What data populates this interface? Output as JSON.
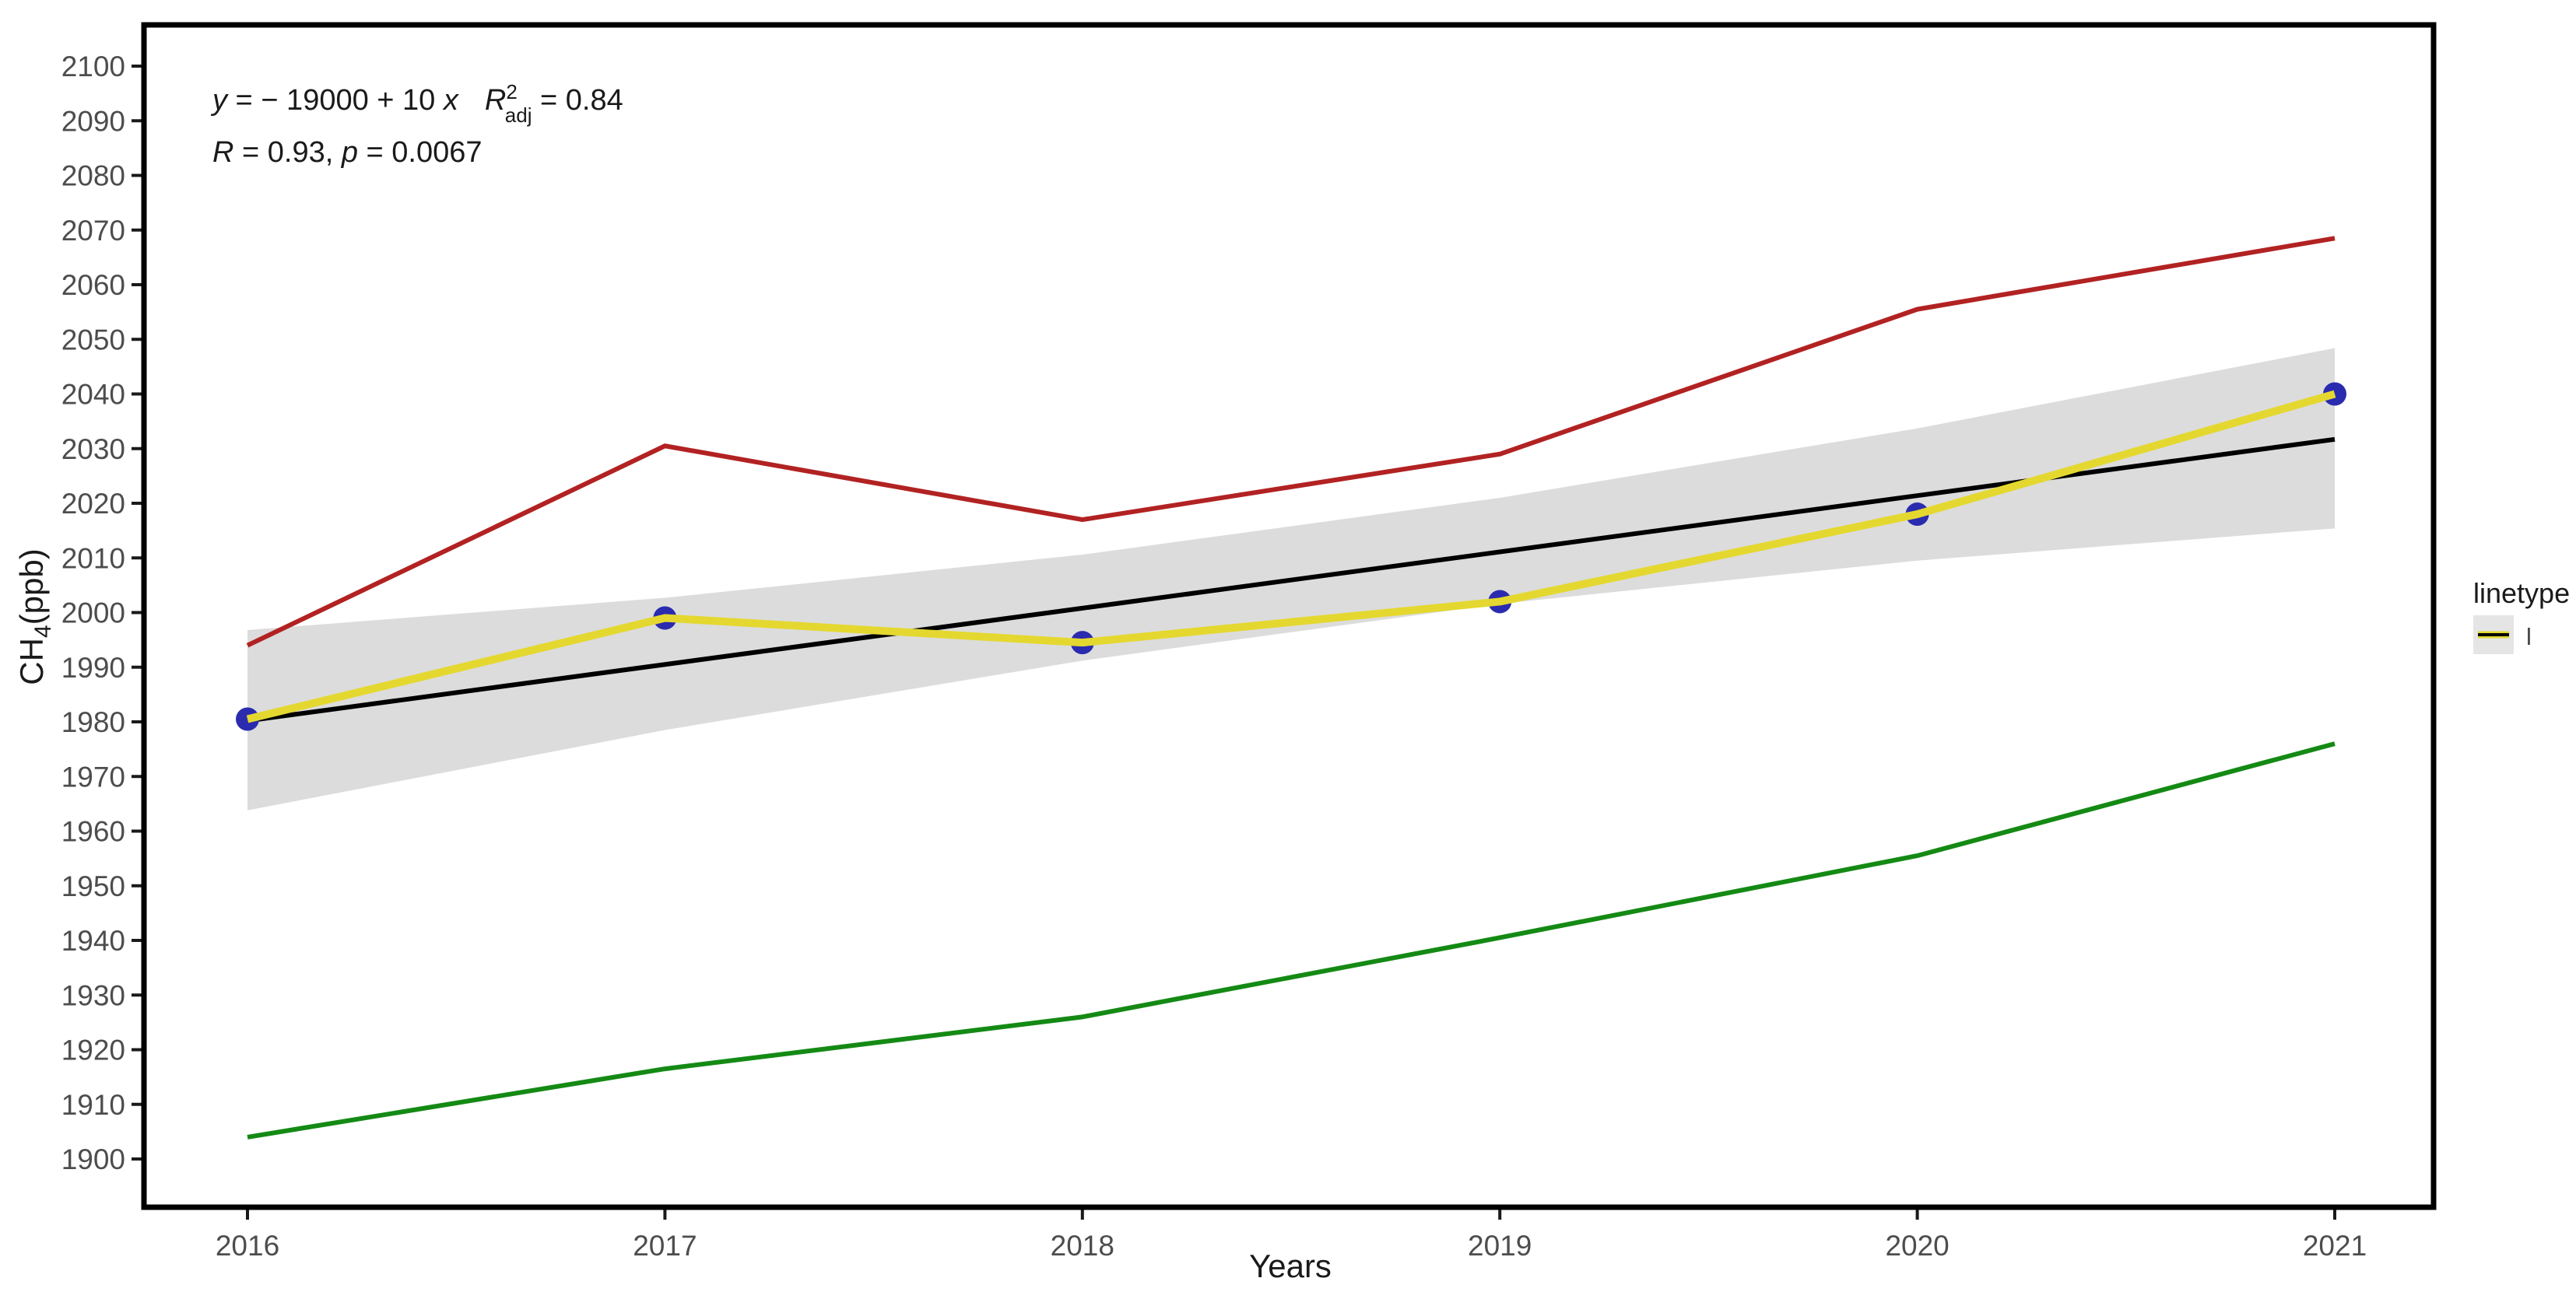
{
  "chart_data": {
    "type": "line",
    "title": "",
    "xlabel": "Years",
    "ylabel": "CH4(ppb)",
    "x": [
      2016,
      2017,
      2018,
      2019,
      2020,
      2021
    ],
    "xlim": [
      2015.75,
      2021.25
    ],
    "ylim": [
      1891,
      2108
    ],
    "yticks": [
      1900,
      1910,
      1920,
      1930,
      1940,
      1950,
      1960,
      1970,
      1980,
      1990,
      2000,
      2010,
      2020,
      2030,
      2040,
      2050,
      2060,
      2070,
      2080,
      2090,
      2100
    ],
    "grid": false,
    "panel_border_color": "#000000",
    "tick_color": "#1a1a1a",
    "series": [
      {
        "name": "upper-red-line",
        "color": "#B22222",
        "width": 6,
        "values": [
          1994,
          2030.5,
          2017,
          2029,
          2055.5,
          2068.5
        ]
      },
      {
        "name": "green-lower-line",
        "color": "#148A14",
        "width": 6,
        "values": [
          1904,
          1916.5,
          1926,
          1940.5,
          1955.5,
          1976
        ]
      },
      {
        "name": "regression-fit",
        "color": "#000000",
        "width": 6,
        "values": [
          1980.2,
          1990.5,
          2000.8,
          2011.1,
          2021.4,
          2031.7
        ]
      },
      {
        "name": "observed-ch4",
        "color": "#E4D830",
        "width": 10,
        "values": [
          1980.5,
          1999,
          1994.5,
          2002,
          2018,
          2040
        ],
        "point_color": "#2B2BAF",
        "point_radius": 15
      }
    ],
    "band": {
      "name": "confidence-band",
      "color": "#DCDCDC",
      "lower": [
        1963.8,
        1978.5,
        1991.2,
        2001.6,
        2009.5,
        2015.4
      ],
      "upper": [
        1996.8,
        2002.7,
        2010.6,
        2021.0,
        2033.7,
        2048.4
      ]
    },
    "legend": {
      "position": "right",
      "title": "linetype",
      "entries": [
        {
          "label": "l",
          "key_bg": "#E5E5E5"
        }
      ]
    }
  },
  "annotation": {
    "line1": {
      "y_var": "y",
      "eq": " = − 19000 + 10 ",
      "x_var": "x",
      "r_var": "R",
      "r_exp": "2",
      "r_sub": "adj",
      "r_val": " = 0.84"
    },
    "line2": {
      "r_var": "R",
      "r_mid": " = 0.93, ",
      "p_var": "p",
      "p_val": " = 0.0067"
    }
  },
  "axes": {
    "x_title": "Years",
    "y_title_main": "CH",
    "y_title_sub": "4",
    "y_title_rest": "(ppb)"
  },
  "legend": {
    "title": "linetype",
    "label": "l"
  }
}
